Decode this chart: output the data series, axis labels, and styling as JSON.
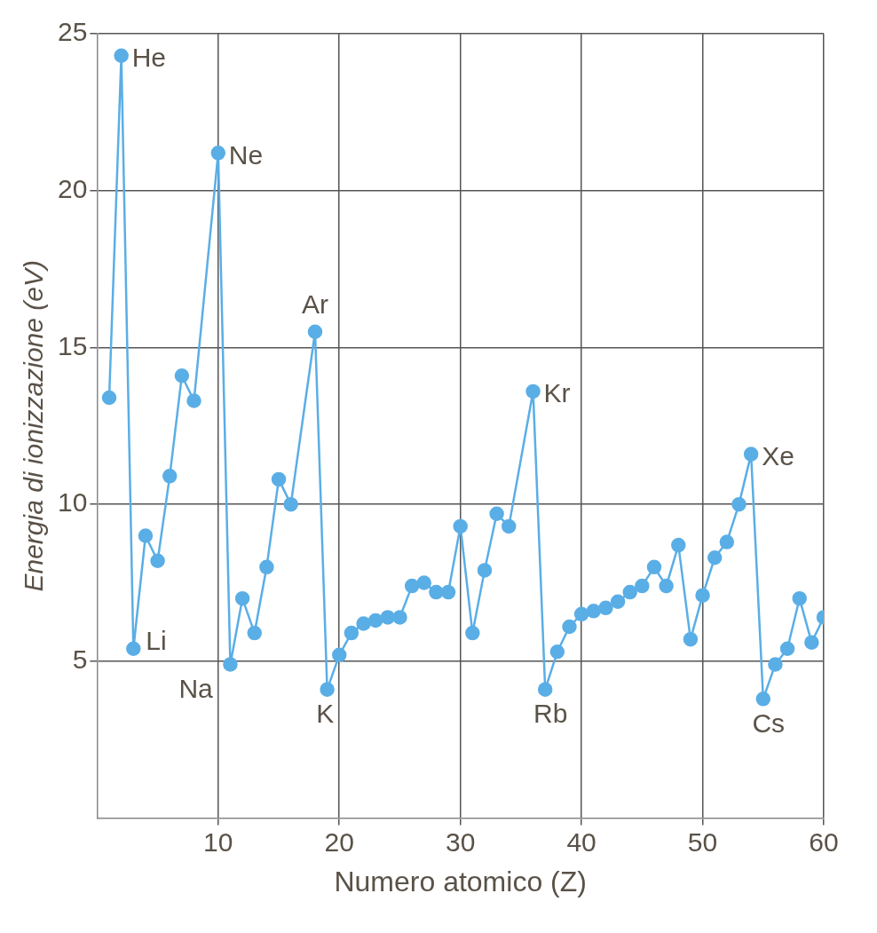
{
  "chart_data": {
    "type": "line",
    "xlabel": "Numero atomico (Z)",
    "ylabel": "Energia di ionizzazione (eV)",
    "x": [
      1,
      2,
      3,
      4,
      5,
      6,
      7,
      8,
      10,
      11,
      12,
      13,
      14,
      15,
      16,
      18,
      19,
      20,
      21,
      22,
      23,
      24,
      25,
      26,
      27,
      28,
      29,
      30,
      31,
      32,
      33,
      34,
      36,
      37,
      38,
      39,
      40,
      41,
      42,
      43,
      44,
      45,
      46,
      47,
      48,
      49,
      50,
      51,
      52,
      53,
      54,
      55,
      56,
      57,
      58,
      59,
      60
    ],
    "series": [
      {
        "color": "#5aaee6",
        "values": [
          13.4,
          24.3,
          5.4,
          9.0,
          8.2,
          10.9,
          14.1,
          13.3,
          21.2,
          4.9,
          7.0,
          5.9,
          8.0,
          10.8,
          10.0,
          15.5,
          4.1,
          5.2,
          5.9,
          6.2,
          6.3,
          6.4,
          6.4,
          7.4,
          7.5,
          7.2,
          7.2,
          9.3,
          5.9,
          7.9,
          9.7,
          9.3,
          13.6,
          4.1,
          5.3,
          6.1,
          6.5,
          6.6,
          6.7,
          6.9,
          7.2,
          7.4,
          8.0,
          7.4,
          8.7,
          5.7,
          7.1,
          8.3,
          8.8,
          10.0,
          11.6,
          3.8,
          4.9,
          5.4,
          7.0,
          5.6,
          6.4
        ]
      }
    ],
    "xlim": [
      0,
      60
    ],
    "xticks": [
      10,
      20,
      30,
      40,
      50,
      60
    ],
    "ylim": [
      0,
      25
    ],
    "yticks": [
      5,
      10,
      15,
      20,
      25
    ],
    "grid": true,
    "marker": "circle",
    "line_style": "solid",
    "legend": false,
    "annotations": [
      {
        "text": "He",
        "x": 2,
        "y": 24.3
      },
      {
        "text": "Li",
        "x": 3,
        "y": 5.4
      },
      {
        "text": "Ne",
        "x": 10,
        "y": 21.2
      },
      {
        "text": "Na",
        "x": 11,
        "y": 4.9
      },
      {
        "text": "Ar",
        "x": 18,
        "y": 15.5
      },
      {
        "text": "K",
        "x": 19,
        "y": 4.1
      },
      {
        "text": "Kr",
        "x": 36,
        "y": 13.6
      },
      {
        "text": "Rb",
        "x": 37,
        "y": 4.1
      },
      {
        "text": "Xe",
        "x": 54,
        "y": 11.6
      },
      {
        "text": "Cs",
        "x": 55,
        "y": 3.8
      }
    ]
  }
}
